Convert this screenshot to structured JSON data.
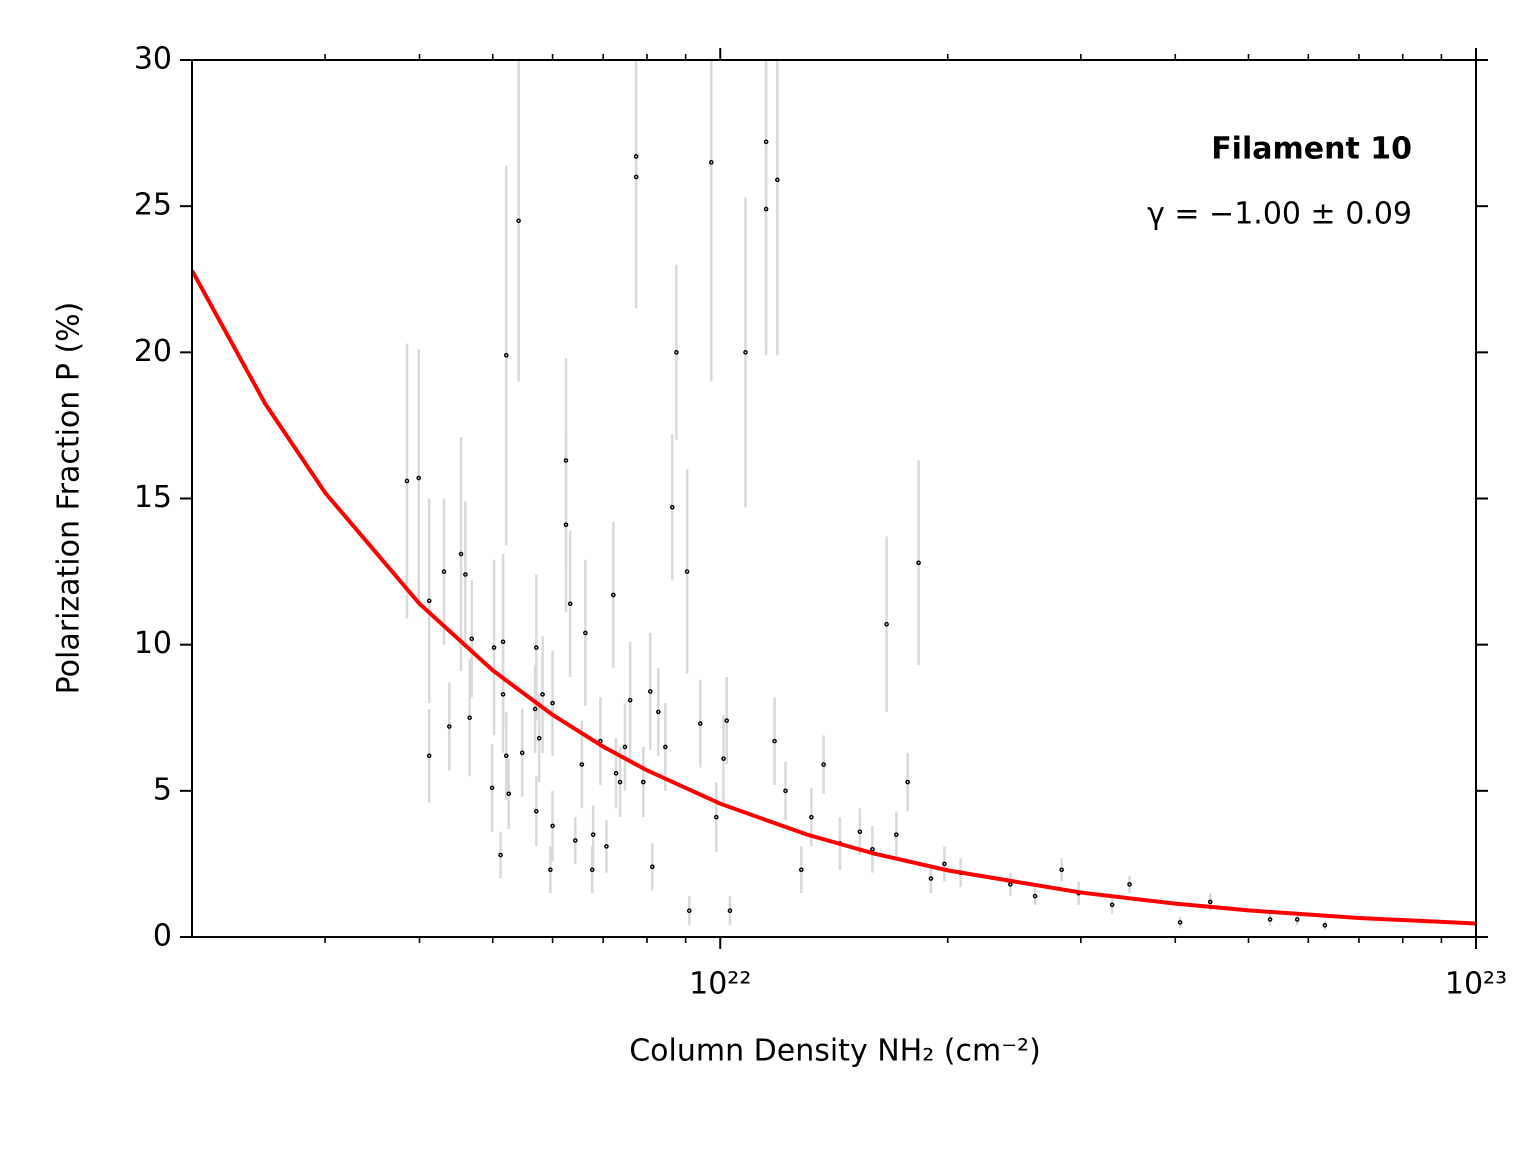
{
  "chart_data": {
    "type": "scatter",
    "annotation_title": "Filament 10",
    "annotation_fit": "γ = −1.00 ± 0.09",
    "x_label": "Column Density NH₂ (cm⁻²)",
    "y_label": "Polarization Fraction P (%)",
    "log_x": true,
    "xlim": [
      2e+21,
      1e+23
    ],
    "ylim": [
      0,
      30
    ],
    "xticks": [
      {
        "value": 1e+22,
        "label": "10²²"
      },
      {
        "value": 1e+23,
        "label": "10²³"
      }
    ],
    "xminorticks": [
      3e+21,
      4e+21,
      5e+21,
      6e+21,
      7e+21,
      8e+21,
      9e+21,
      2e+22,
      3e+22,
      4e+22,
      5e+22,
      6e+22,
      7e+22,
      8e+22,
      9e+22
    ],
    "yticks": [
      0,
      5,
      10,
      15,
      20,
      25,
      30
    ],
    "points": {
      "color": "#000000",
      "error_color": "#d9d9d9",
      "x": [
        3.85e+21,
        3.99e+21,
        4.12e+21,
        4.12e+21,
        4.31e+21,
        4.38e+21,
        4.54e+21,
        4.6e+21,
        4.66e+21,
        4.69e+21,
        4.99e+21,
        5.02e+21,
        5.12e+21,
        5.16e+21,
        5.16e+21,
        5.21e+21,
        5.21e+21,
        5.25e+21,
        5.41e+21,
        5.47e+21,
        5.69e+21,
        5.71e+21,
        5.71e+21,
        5.76e+21,
        5.82e+21,
        5.96e+21,
        6e+21,
        6e+21,
        6.25e+21,
        6.25e+21,
        6.33e+21,
        6.43e+21,
        6.56e+21,
        6.63e+21,
        6.77e+21,
        6.79e+21,
        6.94e+21,
        7.07e+21,
        7.22e+21,
        7.28e+21,
        7.37e+21,
        7.48e+21,
        7.6e+21,
        7.74e+21,
        7.74e+21,
        7.91e+21,
        8.08e+21,
        8.13e+21,
        8.28e+21,
        8.46e+21,
        8.64e+21,
        8.75e+21,
        9.04e+21,
        9.1e+21,
        9.41e+21,
        9.73e+21,
        9.88e+21,
        1.01e+22,
        1.02e+22,
        1.03e+22,
        1.08e+22,
        1.15e+22,
        1.15e+22,
        1.18e+22,
        1.19e+22,
        1.22e+22,
        1.28e+22,
        1.32e+22,
        1.37e+22,
        1.44e+22,
        1.53e+22,
        1.59e+22,
        1.66e+22,
        1.71e+22,
        1.77e+22,
        1.83e+22,
        1.9e+22,
        1.98e+22,
        2.08e+22,
        2.42e+22,
        2.61e+22,
        2.83e+22,
        2.98e+22,
        3.3e+22,
        3.48e+22,
        4.06e+22,
        4.45e+22,
        5.34e+22,
        5.8e+22,
        6.31e+22
      ],
      "values": [
        15.6,
        15.7,
        11.5,
        6.2,
        12.5,
        7.2,
        13.1,
        12.4,
        7.5,
        10.2,
        5.1,
        9.9,
        2.8,
        10.1,
        8.3,
        19.9,
        6.2,
        4.9,
        24.5,
        6.3,
        7.8,
        9.9,
        4.3,
        6.8,
        8.3,
        2.3,
        3.8,
        8.0,
        16.3,
        14.1,
        11.4,
        3.3,
        5.9,
        10.4,
        2.3,
        3.5,
        6.7,
        3.1,
        11.7,
        5.6,
        5.3,
        6.5,
        8.1,
        26.0,
        26.7,
        5.3,
        8.4,
        2.4,
        7.7,
        6.5,
        14.7,
        20.0,
        12.5,
        0.9,
        7.3,
        26.5,
        4.1,
        6.1,
        7.4,
        0.9,
        20.0,
        27.2,
        24.9,
        6.7,
        25.9,
        5.0,
        2.3,
        4.1,
        5.9,
        3.2,
        3.6,
        3.0,
        10.7,
        3.5,
        5.3,
        12.8,
        2.0,
        2.5,
        2.2,
        1.8,
        1.4,
        2.3,
        1.5,
        1.1,
        1.8,
        0.5,
        1.2,
        0.6,
        0.6,
        0.4
      ],
      "errors": [
        4.7,
        4.4,
        3.5,
        1.6,
        2.5,
        1.5,
        4.0,
        2.5,
        2.0,
        2.0,
        1.5,
        3.0,
        0.8,
        3.0,
        2.0,
        6.5,
        1.5,
        1.2,
        5.5,
        1.5,
        1.5,
        2.5,
        1.2,
        1.5,
        2.0,
        0.8,
        1.2,
        1.8,
        3.5,
        3.0,
        2.5,
        0.8,
        1.5,
        2.5,
        0.8,
        1.0,
        1.5,
        0.9,
        2.5,
        1.2,
        1.2,
        1.5,
        2.0,
        4.5,
        4.5,
        1.2,
        2.0,
        0.8,
        1.5,
        1.5,
        2.5,
        3.0,
        3.5,
        0.5,
        1.5,
        7.5,
        1.2,
        1.5,
        1.5,
        0.5,
        5.3,
        7.0,
        5.0,
        1.5,
        6.0,
        1.0,
        0.8,
        1.0,
        1.0,
        0.9,
        0.8,
        0.8,
        3.0,
        0.8,
        1.0,
        3.5,
        0.5,
        0.6,
        0.5,
        0.4,
        0.3,
        0.4,
        0.4,
        0.3,
        0.3,
        0.2,
        0.3,
        0.2,
        0.2,
        0.15
      ]
    },
    "fit": {
      "color": "#ff0000",
      "x": [
        2e+21,
        2.5e+21,
        3e+21,
        4e+21,
        5e+21,
        6e+21,
        7e+21,
        8e+21,
        1e+22,
        1.3e+22,
        1.6e+22,
        2e+22,
        3e+22,
        4e+22,
        5e+22,
        7e+22,
        1e+23
      ],
      "values": [
        22.8,
        18.24,
        15.2,
        11.4,
        9.12,
        7.6,
        6.51,
        5.7,
        4.56,
        3.51,
        2.85,
        2.28,
        1.52,
        1.14,
        0.91,
        0.65,
        0.46
      ]
    }
  }
}
